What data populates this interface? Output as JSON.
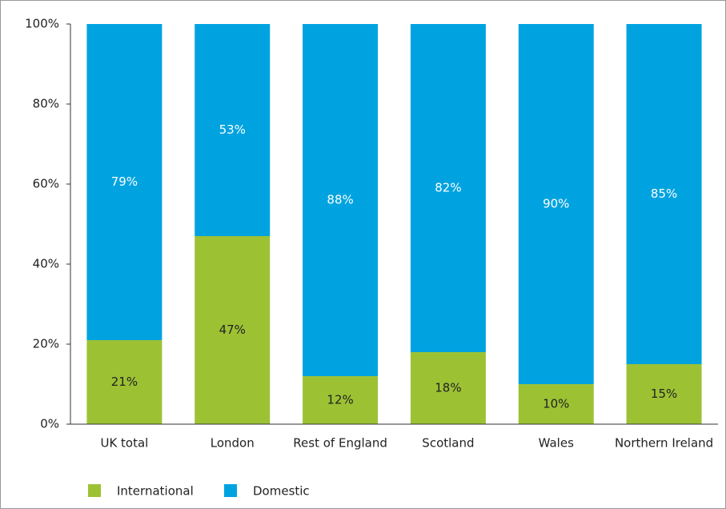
{
  "chart_data": {
    "type": "stacked_bar",
    "categories": [
      "UK total",
      "London",
      "Rest of England",
      "Scotland",
      "Wales",
      "Northern Ireland"
    ],
    "series": [
      {
        "name": "International",
        "color": "#9cc234",
        "values": [
          21,
          47,
          12,
          18,
          10,
          15
        ],
        "value_labels": [
          "21%",
          "47%",
          "12%",
          "18%",
          "10%",
          "15%"
        ]
      },
      {
        "name": "Domestic",
        "color": "#00a3e0",
        "values": [
          79,
          53,
          88,
          82,
          90,
          85
        ],
        "value_labels": [
          "79%",
          "53%",
          "88%",
          "82%",
          "90%",
          "85%"
        ]
      }
    ],
    "ylim": [
      0,
      100
    ],
    "yticks": [
      {
        "value": 0,
        "label": "0%"
      },
      {
        "value": 20,
        "label": "20%"
      },
      {
        "value": 40,
        "label": "40%"
      },
      {
        "value": 60,
        "label": "60%"
      },
      {
        "value": 80,
        "label": "80%"
      },
      {
        "value": 100,
        "label": "100%"
      }
    ],
    "legend": "bottom-left"
  }
}
